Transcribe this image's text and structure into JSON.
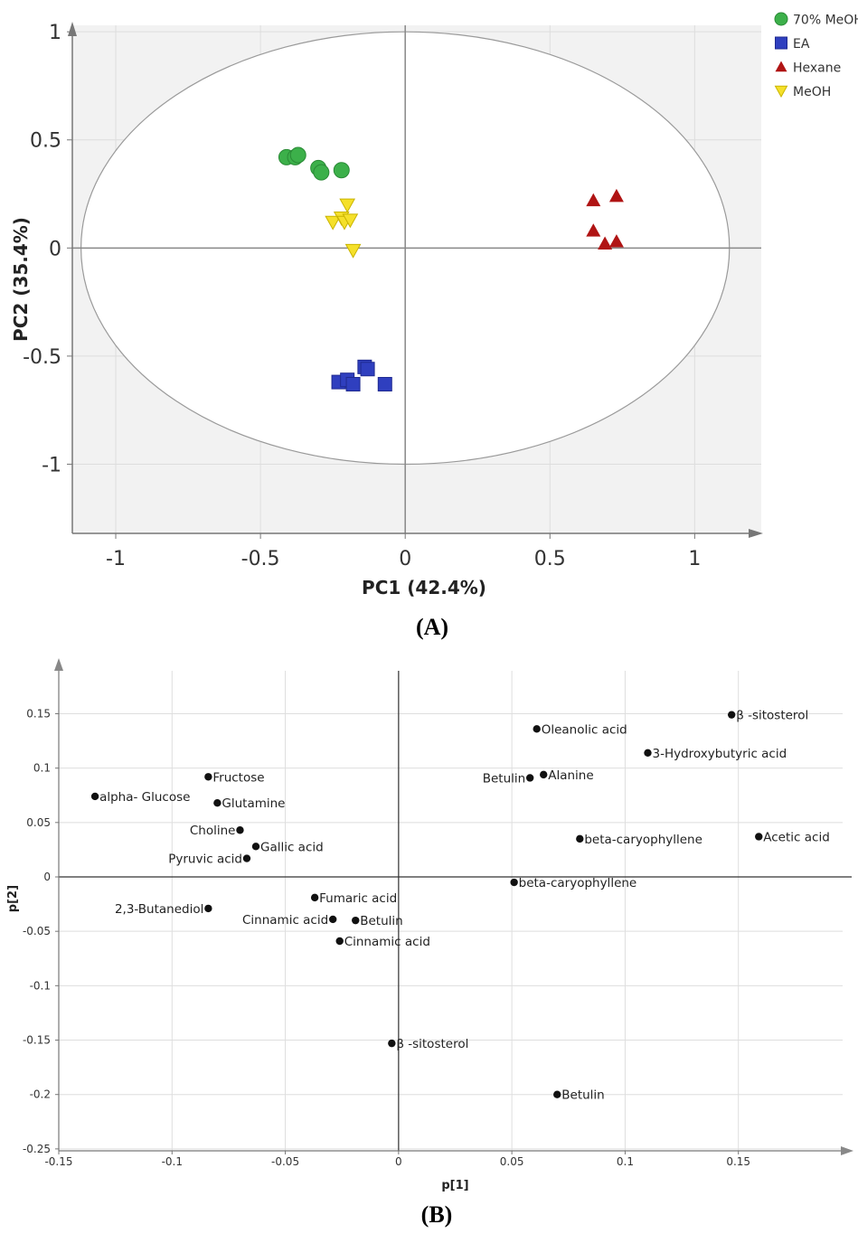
{
  "chart_data": [
    {
      "type": "scatter",
      "panel_label": "(A)",
      "xlabel": "PC1 (42.4%)",
      "ylabel": "PC2 (35.4%)",
      "xlim": [
        -1.15,
        1.23
      ],
      "ylim": [
        -1.32,
        1.03
      ],
      "x_ticks": [
        -1,
        -0.5,
        0,
        0.5,
        1
      ],
      "y_ticks": [
        1,
        0.5,
        0,
        -0.5,
        -1
      ],
      "x_tick_labels": [
        "-1",
        "-0.5",
        "0",
        "0.5",
        "1"
      ],
      "y_tick_labels": [
        "1",
        "0.5",
        "0",
        "-0.5",
        "-1"
      ],
      "grid": true,
      "ellipse": {
        "rx": 1.12,
        "ry": 1.0
      },
      "legend_position": "top-right",
      "series": [
        {
          "name": "70% MeOH",
          "marker": "circle",
          "color": "#3cb04a",
          "points": [
            [
              -0.41,
              0.42
            ],
            [
              -0.38,
              0.42
            ],
            [
              -0.37,
              0.43
            ],
            [
              -0.3,
              0.37
            ],
            [
              -0.29,
              0.35
            ],
            [
              -0.22,
              0.36
            ]
          ]
        },
        {
          "name": "EA",
          "marker": "square",
          "color": "#2f3fbf",
          "points": [
            [
              -0.23,
              -0.62
            ],
            [
              -0.2,
              -0.61
            ],
            [
              -0.18,
              -0.63
            ],
            [
              -0.14,
              -0.55
            ],
            [
              -0.13,
              -0.56
            ],
            [
              -0.07,
              -0.63
            ]
          ]
        },
        {
          "name": "Hexane",
          "marker": "triangle-up",
          "color": "#b01414",
          "points": [
            [
              0.65,
              0.22
            ],
            [
              0.65,
              0.08
            ],
            [
              0.69,
              0.02
            ],
            [
              0.73,
              0.24
            ],
            [
              0.73,
              0.03
            ]
          ]
        },
        {
          "name": "MeOH",
          "marker": "triangle-down",
          "color": "#f5e02a",
          "points": [
            [
              -0.25,
              0.12
            ],
            [
              -0.22,
              0.14
            ],
            [
              -0.21,
              0.12
            ],
            [
              -0.2,
              0.2
            ],
            [
              -0.19,
              0.13
            ],
            [
              -0.18,
              -0.01
            ]
          ]
        }
      ]
    },
    {
      "type": "scatter",
      "panel_label": "(B)",
      "xlabel": "p[1]",
      "ylabel": "p[2]",
      "xlim": [
        -0.15,
        0.2
      ],
      "ylim": [
        -0.25,
        0.2
      ],
      "x_ticks": [
        -0.15,
        -0.1,
        -0.05,
        0,
        0.05,
        0.1,
        0.15
      ],
      "y_ticks": [
        0.15,
        0.1,
        0.05,
        0,
        -0.05,
        -0.1,
        -0.15,
        -0.2,
        -0.25
      ],
      "x_tick_labels": [
        "-0.15",
        "-0.1",
        "-0.05",
        "0",
        "0.05",
        "0.1",
        "0.15"
      ],
      "y_tick_labels": [
        "0.15",
        "0.1",
        "0.05",
        "0",
        "-0.05",
        "-0.1",
        "-0.15",
        "-0.2",
        "-0.25"
      ],
      "grid": true,
      "points": [
        {
          "label": "β -sitosterol",
          "x": 0.147,
          "y": 0.149,
          "side": "right"
        },
        {
          "label": "Oleanolic acid",
          "x": 0.061,
          "y": 0.136,
          "side": "right"
        },
        {
          "label": "3-Hydroxybutyric acid",
          "x": 0.11,
          "y": 0.114,
          "side": "right"
        },
        {
          "label": "Alanine",
          "x": 0.064,
          "y": 0.094,
          "side": "right"
        },
        {
          "label": "Betulin",
          "x": 0.058,
          "y": 0.091,
          "side": "left"
        },
        {
          "label": "Fructose",
          "x": -0.084,
          "y": 0.092,
          "side": "right"
        },
        {
          "label": "alpha- Glucose",
          "x": -0.134,
          "y": 0.074,
          "side": "right"
        },
        {
          "label": "Glutamine",
          "x": -0.08,
          "y": 0.068,
          "side": "right"
        },
        {
          "label": "Choline",
          "x": -0.07,
          "y": 0.043,
          "side": "left"
        },
        {
          "label": "Gallic acid",
          "x": -0.063,
          "y": 0.028,
          "side": "right"
        },
        {
          "label": "Pyruvic acid",
          "x": -0.067,
          "y": 0.017,
          "side": "left"
        },
        {
          "label": "beta-caryophyllene",
          "x": 0.08,
          "y": 0.035,
          "side": "right"
        },
        {
          "label": "Acetic acid",
          "x": 0.159,
          "y": 0.037,
          "side": "right"
        },
        {
          "label": "beta-caryophyllene",
          "x": 0.051,
          "y": -0.005,
          "side": "right"
        },
        {
          "label": "Fumaric acid",
          "x": -0.037,
          "y": -0.019,
          "side": "right"
        },
        {
          "label": "2,3-Butanediol",
          "x": -0.084,
          "y": -0.029,
          "side": "left"
        },
        {
          "label": "Cinnamic acid",
          "x": -0.029,
          "y": -0.039,
          "side": "left"
        },
        {
          "label": "Betulin",
          "x": -0.019,
          "y": -0.04,
          "side": "right"
        },
        {
          "label": "Cinnamic acid",
          "x": -0.026,
          "y": -0.059,
          "side": "right"
        },
        {
          "label": "β -sitosterol",
          "x": -0.003,
          "y": -0.153,
          "side": "right"
        },
        {
          "label": "Betulin",
          "x": 0.07,
          "y": -0.2,
          "side": "right"
        }
      ]
    }
  ]
}
